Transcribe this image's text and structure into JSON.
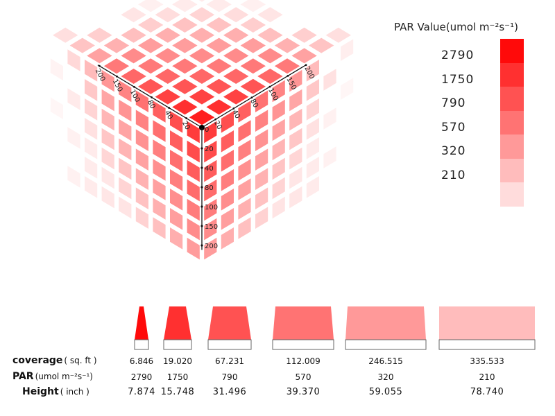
{
  "legend": {
    "title": "PAR Value(umol m⁻²s⁻¹)",
    "items": [
      {
        "label": "2790",
        "color": "#ff0a0a"
      },
      {
        "label": "1750",
        "color": "#ff3030"
      },
      {
        "label": "790",
        "color": "#ff5252"
      },
      {
        "label": "570",
        "color": "#ff7373"
      },
      {
        "label": "320",
        "color": "#ff9999"
      },
      {
        "label": "210",
        "color": "#ffbcbc"
      },
      {
        "label": "",
        "color": "#ffdcdc"
      }
    ]
  },
  "cube": {
    "left_axis_ticks": [
      "200",
      "150",
      "100",
      "80",
      "40",
      "20"
    ],
    "right_axis_ticks": [
      "20",
      "40",
      "80",
      "100",
      "150",
      "200"
    ],
    "vertical_axis_ticks": [
      "0",
      "20",
      "40",
      "80",
      "100",
      "150",
      "200"
    ]
  },
  "table": {
    "coverage_label": "coverage",
    "coverage_unit": "( sq. ft )",
    "par_label": "PAR",
    "par_unit": "(umol m⁻²s⁻¹)",
    "height_label": "Height",
    "height_unit": "( inch )",
    "columns": [
      {
        "coverage": "6.846",
        "par": "2790",
        "height": "7.874",
        "color": "#ff0a0a"
      },
      {
        "coverage": "19.020",
        "par": "1750",
        "height": "15.748",
        "color": "#ff3030"
      },
      {
        "coverage": "67.231",
        "par": "790",
        "height": "31.496",
        "color": "#ff5252"
      },
      {
        "coverage": "112.009",
        "par": "570",
        "height": "39.370",
        "color": "#ff7373"
      },
      {
        "coverage": "246.515",
        "par": "320",
        "height": "59.055",
        "color": "#ff9999"
      },
      {
        "coverage": "335.533",
        "par": "210",
        "height": "78.740",
        "color": "#ffbcbc"
      }
    ]
  }
}
